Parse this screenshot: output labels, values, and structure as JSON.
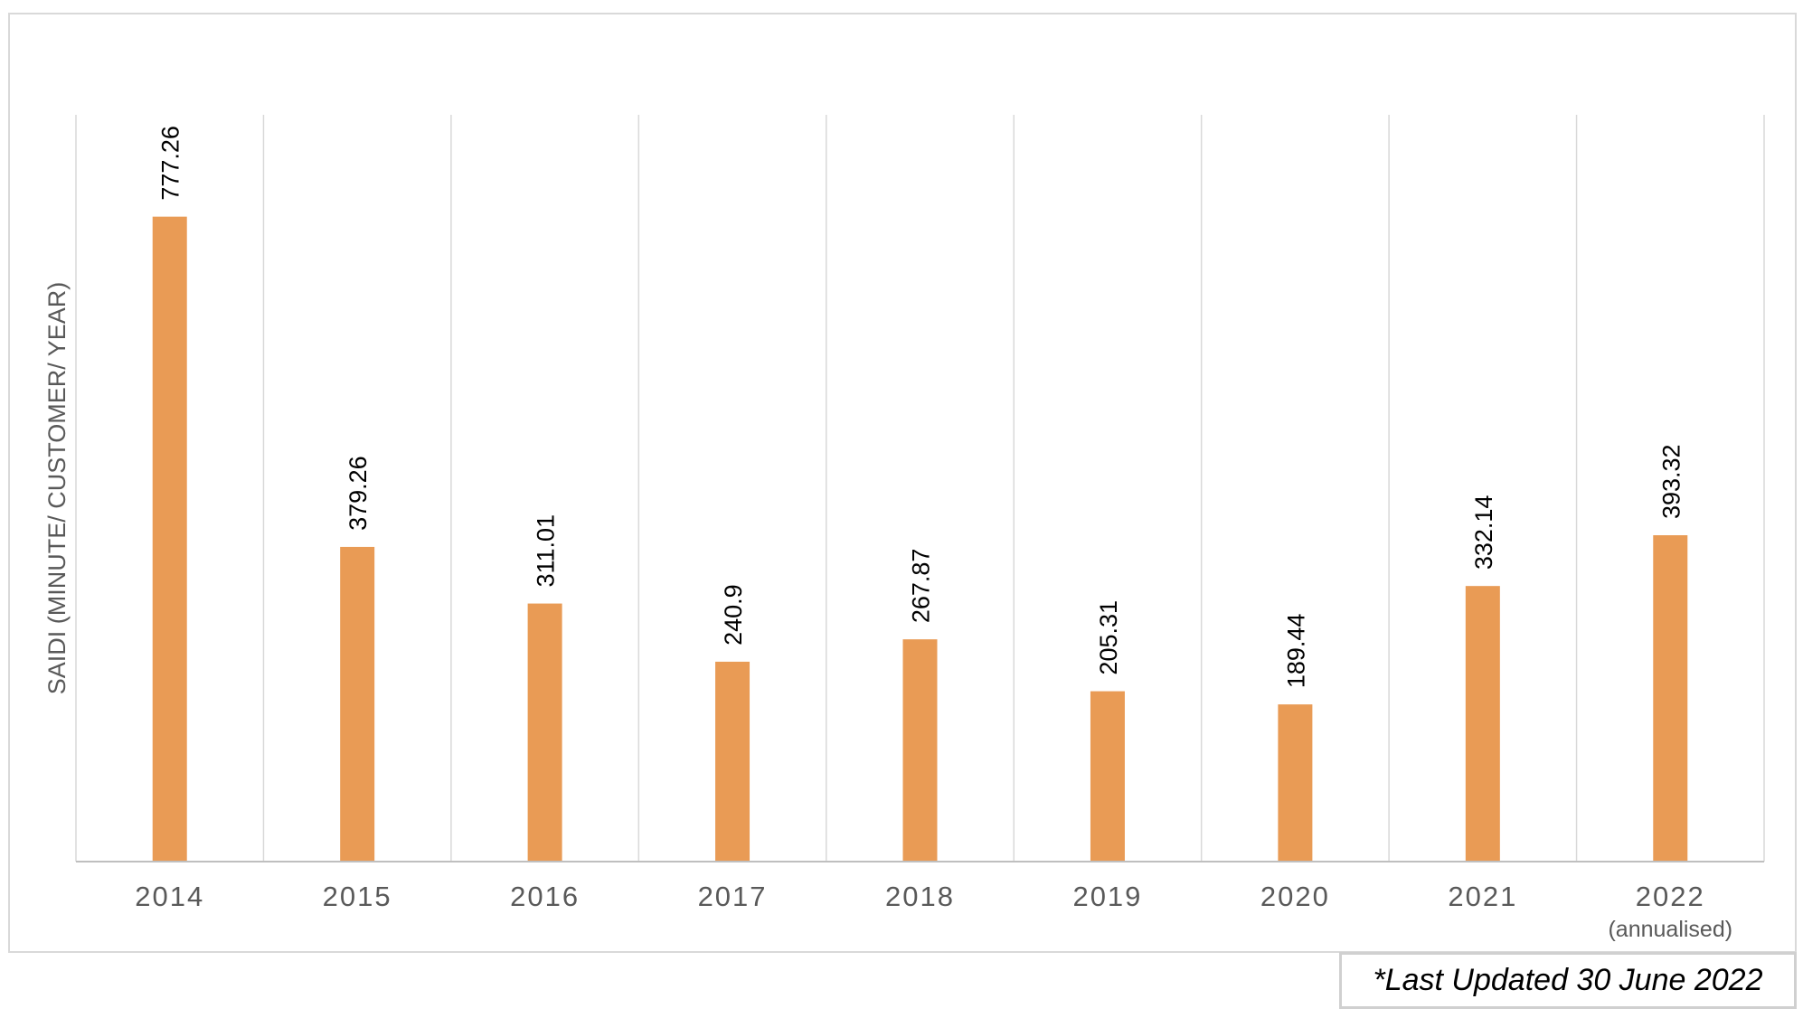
{
  "chart_data": {
    "type": "bar",
    "categories": [
      "2014",
      "2015",
      "2016",
      "2017",
      "2018",
      "2019",
      "2020",
      "2021",
      "2022"
    ],
    "category_sublabels": [
      "",
      "",
      "",
      "",
      "",
      "",
      "",
      "",
      "(annualised)"
    ],
    "values": [
      777.26,
      379.26,
      311.01,
      240.9,
      267.87,
      205.31,
      189.44,
      332.14,
      393.32
    ],
    "value_labels": [
      "777.26",
      "379.26",
      "311.01",
      "240.9",
      "267.87",
      "205.31",
      "189.44",
      "332.14",
      "393.32"
    ],
    "title": "",
    "xlabel": "",
    "ylabel": "SAIDI (MINUTE/ CUSTOMER/ YEAR)",
    "ylim": [
      0,
      900
    ],
    "grid": "vertical category separators",
    "legend": "none",
    "bar_color": "#E99B55"
  },
  "note": {
    "text": "*Last Updated 30 June 2022"
  }
}
